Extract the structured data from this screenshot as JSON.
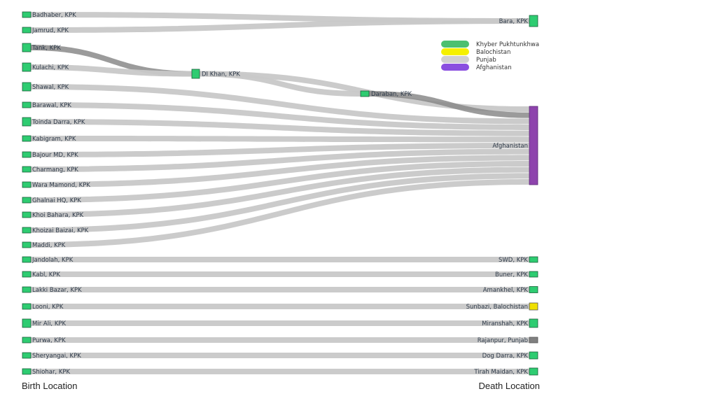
{
  "captions": {
    "birth": "Birth Location",
    "death": "Death Location"
  },
  "colors": {
    "kpk": "#2ecc71",
    "balochistan": "#f0e000",
    "punjab": "#808080",
    "afghanistan": "#8e44ad",
    "link": "#c8c8c8",
    "link_dark": "#8a8a8a",
    "node_stroke": "#1a5f3a"
  },
  "legend": [
    {
      "label": "Khyber Pukhtunkhwa",
      "color": "#4cc070"
    },
    {
      "label": "Balochistan",
      "color": "#f5f000"
    },
    {
      "label": "Punjab",
      "color": "#d0d0d0"
    },
    {
      "label": "Afghanistan",
      "color": "#8a4fe0"
    }
  ],
  "source_nodes": [
    {
      "id": "badhaber",
      "label": "Badhaber, KPK"
    },
    {
      "id": "jamrud",
      "label": "Jamrud, KPK"
    },
    {
      "id": "tank",
      "label": "Tank, KPK"
    },
    {
      "id": "kulachi",
      "label": "Kulachi, KPK"
    },
    {
      "id": "shawal",
      "label": "Shawal, KPK"
    },
    {
      "id": "barawal",
      "label": "Barawal, KPK"
    },
    {
      "id": "toinda",
      "label": "Toinda Darra, KPK"
    },
    {
      "id": "kabigram",
      "label": "Kabigram, KPK"
    },
    {
      "id": "bajour",
      "label": "Bajour MD, KPK"
    },
    {
      "id": "charmang",
      "label": "Charmang, KPK"
    },
    {
      "id": "wara",
      "label": "Wara Mamond, KPK"
    },
    {
      "id": "ghalnai",
      "label": "Ghalnai HQ, KPK"
    },
    {
      "id": "khoibahara",
      "label": "Khoi Bahara, KPK"
    },
    {
      "id": "khoizai",
      "label": "Khoizai Baizai, KPK"
    },
    {
      "id": "maddi",
      "label": "Maddi, KPK"
    },
    {
      "id": "jandolah",
      "label": "Jandolah, KPK"
    },
    {
      "id": "kabl",
      "label": "Kabl, KPK"
    },
    {
      "id": "lakki",
      "label": "Lakki Bazar, KPK"
    },
    {
      "id": "looni",
      "label": "Looni, KPK"
    },
    {
      "id": "mirali",
      "label": "Mir Ali, KPK"
    },
    {
      "id": "purwa",
      "label": "Purwa, KPK"
    },
    {
      "id": "sheryangai",
      "label": "Sheryangai, KPK"
    },
    {
      "id": "shiohar",
      "label": "Shiohar, KPK"
    }
  ],
  "middle_nodes": [
    {
      "id": "dikhan",
      "label": "DI Khan, KPK"
    },
    {
      "id": "daraban",
      "label": "Daraban, KPK"
    }
  ],
  "target_nodes": [
    {
      "id": "bara",
      "label": "Bara, KPK",
      "region": "kpk"
    },
    {
      "id": "afghanistan",
      "label": "Afghanistan",
      "region": "afghanistan"
    },
    {
      "id": "swd",
      "label": "SWD, KPK",
      "region": "kpk"
    },
    {
      "id": "buner",
      "label": "Buner, KPK",
      "region": "kpk"
    },
    {
      "id": "amankhel",
      "label": "Amankhel, KPK",
      "region": "kpk"
    },
    {
      "id": "sunbazi",
      "label": "Sunbazi, Balochistan",
      "region": "balochistan"
    },
    {
      "id": "miranshah",
      "label": "Miranshah, KPK",
      "region": "kpk"
    },
    {
      "id": "rajanpur",
      "label": "Rajanpur, Punjab",
      "region": "punjab"
    },
    {
      "id": "dogdarra",
      "label": "Dog Darra, KPK",
      "region": "kpk"
    },
    {
      "id": "tirah",
      "label": "Tirah Maidan, KPK",
      "region": "kpk"
    }
  ],
  "links": [
    {
      "from": "badhaber",
      "to": "bara",
      "value": 1
    },
    {
      "from": "jamrud",
      "to": "bara",
      "value": 1
    },
    {
      "from": "tank",
      "to": "dikhan",
      "value": 1
    },
    {
      "from": "kulachi",
      "to": "dikhan",
      "value": 1
    },
    {
      "from": "dikhan",
      "to": "daraban",
      "value": 1
    },
    {
      "from": "dikhan",
      "to": "afghanistan",
      "value": 1
    },
    {
      "from": "daraban",
      "to": "afghanistan",
      "value": 1
    },
    {
      "from": "shawal",
      "to": "afghanistan",
      "value": 1
    },
    {
      "from": "barawal",
      "to": "afghanistan",
      "value": 1
    },
    {
      "from": "toinda",
      "to": "afghanistan",
      "value": 1
    },
    {
      "from": "kabigram",
      "to": "afghanistan",
      "value": 1
    },
    {
      "from": "bajour",
      "to": "afghanistan",
      "value": 1
    },
    {
      "from": "charmang",
      "to": "afghanistan",
      "value": 1
    },
    {
      "from": "wara",
      "to": "afghanistan",
      "value": 1
    },
    {
      "from": "ghalnai",
      "to": "afghanistan",
      "value": 1
    },
    {
      "from": "khoibahara",
      "to": "afghanistan",
      "value": 1
    },
    {
      "from": "khoizai",
      "to": "afghanistan",
      "value": 1
    },
    {
      "from": "maddi",
      "to": "afghanistan",
      "value": 1
    },
    {
      "from": "jandolah",
      "to": "swd",
      "value": 1
    },
    {
      "from": "kabl",
      "to": "buner",
      "value": 1
    },
    {
      "from": "lakki",
      "to": "amankhel",
      "value": 1
    },
    {
      "from": "looni",
      "to": "sunbazi",
      "value": 1
    },
    {
      "from": "mirali",
      "to": "miranshah",
      "value": 1
    },
    {
      "from": "purwa",
      "to": "rajanpur",
      "value": 1
    },
    {
      "from": "sheryangai",
      "to": "dogdarra",
      "value": 1
    },
    {
      "from": "shiohar",
      "to": "tirah",
      "value": 1
    }
  ]
}
